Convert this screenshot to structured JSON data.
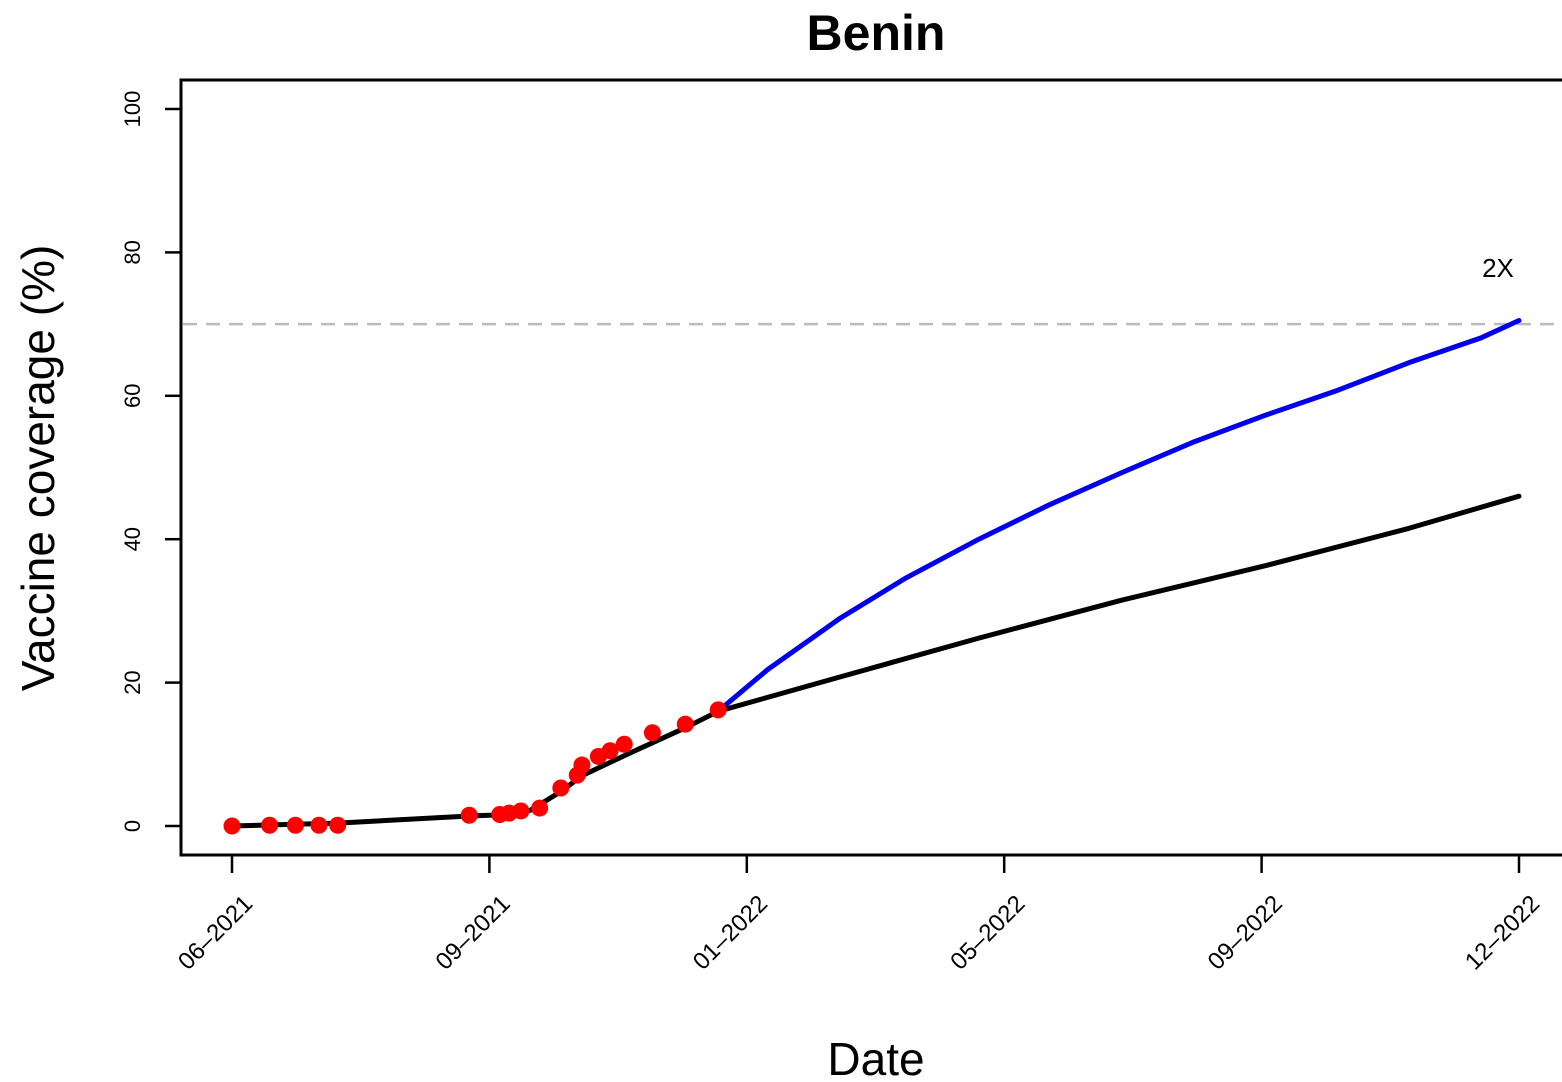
{
  "chart_data": {
    "type": "line",
    "title": "Benin",
    "xlabel": "Date",
    "ylabel": "Vaccine coverage (%)",
    "ylim": [
      0,
      100
    ],
    "y_ticks": [
      0,
      20,
      40,
      60,
      80,
      100
    ],
    "x_ticks": [
      "06–2021",
      "09–2021",
      "01–2022",
      "05–2022",
      "09–2022",
      "12–2022"
    ],
    "x_range": [
      "2021-06-01",
      "2022-12-01"
    ],
    "target_line": {
      "y": 70,
      "style": "dashed",
      "color": "#bbbbbb"
    },
    "observed_points": {
      "color": "#ff0000",
      "x": [
        "2021-06-01",
        "2021-06-17",
        "2021-06-28",
        "2021-07-08",
        "2021-07-16",
        "2021-09-10",
        "2021-09-23",
        "2021-09-27",
        "2021-10-02",
        "2021-10-10",
        "2021-10-19",
        "2021-10-26",
        "2021-10-28",
        "2021-11-04",
        "2021-11-09",
        "2021-11-15",
        "2021-11-27",
        "2021-12-11",
        "2021-12-25"
      ],
      "y": [
        0.0,
        0.1,
        0.1,
        0.1,
        0.1,
        1.5,
        1.6,
        1.8,
        2.1,
        2.5,
        5.3,
        7.1,
        8.5,
        9.7,
        10.5,
        11.4,
        13.0,
        14.2,
        16.2
      ]
    },
    "series": [
      {
        "color": "#000000",
        "x": [
          "2021-06-01",
          "2021-07-16",
          "2021-09-10",
          "2021-09-27",
          "2021-10-06",
          "2021-10-19",
          "2021-10-28",
          "2021-11-15",
          "2021-12-11",
          "2021-12-25",
          "2022-02-15",
          "2022-04-15",
          "2022-06-15",
          "2022-08-15",
          "2022-10-15",
          "2022-12-01"
        ],
        "y": [
          0.0,
          0.4,
          1.4,
          1.6,
          2.2,
          4.8,
          7.0,
          9.8,
          13.7,
          16.0,
          20.8,
          26.2,
          31.5,
          36.3,
          41.5,
          46.0
        ]
      },
      {
        "name": "2X",
        "color": "#0000ee",
        "x": [
          "2021-12-25",
          "2022-01-15",
          "2022-02-15",
          "2022-03-15",
          "2022-04-15",
          "2022-05-15",
          "2022-06-15",
          "2022-07-15",
          "2022-08-15",
          "2022-09-15",
          "2022-10-15",
          "2022-11-15",
          "2022-12-01"
        ],
        "y": [
          16.0,
          21.8,
          29.0,
          34.6,
          40.0,
          44.8,
          49.3,
          53.5,
          57.3,
          60.8,
          64.6,
          68.1,
          70.5
        ]
      }
    ],
    "annotations": [
      {
        "text": "2X",
        "color": "#0000ee"
      }
    ]
  }
}
